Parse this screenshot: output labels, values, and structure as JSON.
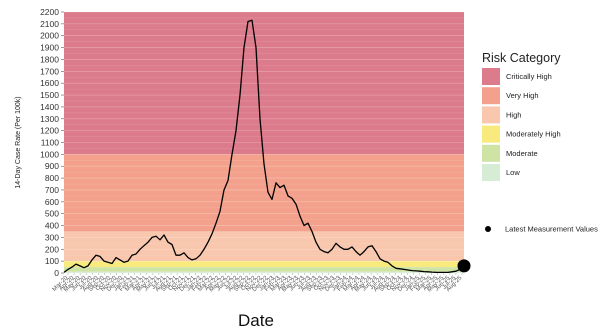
{
  "chart_data": {
    "type": "line",
    "title": "",
    "xlabel": "Date",
    "ylabel": "14-Day Case Rate (Per 100k)",
    "ylim": [
      0,
      2200
    ],
    "y_ticks": [
      0,
      100,
      200,
      300,
      400,
      500,
      600,
      700,
      800,
      900,
      1000,
      1100,
      1200,
      1300,
      1400,
      1500,
      1600,
      1700,
      1800,
      1900,
      2000,
      2100,
      2200
    ],
    "x_tick_labels": [
      "Mar-20",
      "Apr-20",
      "May-20",
      "Jun-20",
      "Jul-20",
      "Aug-20",
      "Sep-20",
      "Oct-20",
      "Nov-20",
      "Dec-20",
      "Jan-21",
      "Feb-21",
      "Mar-21",
      "Apr-21",
      "May-21",
      "Jun-21",
      "Jul-21",
      "Aug-21",
      "Sep-21",
      "Oct-21",
      "Nov-21",
      "Dec-21",
      "Jan-22",
      "Feb-22",
      "Mar-22",
      "Apr-22",
      "May-22",
      "Jun-22",
      "Jul-22",
      "Aug-22",
      "Sep-22",
      "Oct-22",
      "Nov-22",
      "Dec-22",
      "Jan-23",
      "Feb-23",
      "Mar-23",
      "Apr-23",
      "May-23",
      "Jun-23",
      "Jul-23",
      "Aug-23",
      "Sep-23",
      "Oct-23",
      "Nov-23",
      "Dec-23",
      "Jan-24",
      "Feb-24",
      "Mar-24",
      "Apr-24",
      "May-24",
      "Jun-24",
      "Jul-24",
      "Aug-24",
      "Sep-24",
      "Oct-24",
      "Nov-24",
      "Dec-24",
      "Jan-25",
      "Feb-25",
      "Mar-25",
      "Apr-25",
      "May-25",
      "Jun-25",
      "Jul-25",
      "Aug-25"
    ],
    "grid": true,
    "legend_position": "right",
    "risk_bands": [
      {
        "name": "Critically High",
        "from": 1000,
        "to": 2200,
        "color": "#dc7b8b"
      },
      {
        "name": "Very High",
        "from": 350,
        "to": 1000,
        "color": "#f3a18c"
      },
      {
        "name": "High",
        "from": 100,
        "to": 350,
        "color": "#f8c7ad"
      },
      {
        "name": "Moderately High",
        "from": 50,
        "to": 100,
        "color": "#f8ea7c"
      },
      {
        "name": "Moderate",
        "from": 10,
        "to": 50,
        "color": "#cfe3a5"
      },
      {
        "name": "Low",
        "from": 0,
        "to": 10,
        "color": "#d6ecd4"
      }
    ],
    "series": [
      {
        "x": [
          0,
          1,
          2,
          3,
          4,
          5,
          6,
          7,
          8,
          9,
          10,
          11,
          12,
          13,
          14,
          15,
          16,
          17,
          18,
          19,
          20,
          21,
          22,
          23,
          24,
          25,
          26,
          27,
          28,
          29,
          30,
          31,
          32,
          33,
          34,
          35,
          36,
          37,
          38,
          39,
          40,
          41,
          42,
          43,
          44,
          45,
          46,
          47,
          48,
          49,
          50,
          51,
          52,
          53,
          54,
          55,
          56,
          57,
          58,
          59,
          60,
          61,
          62,
          63,
          64,
          65,
          66,
          67,
          68,
          69,
          70,
          71,
          72,
          73,
          74,
          75,
          76,
          77,
          78,
          79,
          80,
          81,
          82,
          83,
          84,
          85,
          86,
          87,
          88,
          89,
          90,
          91,
          92,
          93,
          94,
          95,
          96,
          97,
          98,
          99,
          100
        ],
        "values": [
          5,
          30,
          50,
          75,
          60,
          45,
          60,
          110,
          150,
          140,
          100,
          90,
          80,
          130,
          110,
          90,
          100,
          150,
          160,
          200,
          230,
          260,
          300,
          310,
          280,
          320,
          260,
          240,
          150,
          150,
          170,
          130,
          110,
          120,
          150,
          200,
          260,
          330,
          420,
          520,
          700,
          780,
          1000,
          1200,
          1500,
          1900,
          2120,
          2130,
          1900,
          1300,
          920,
          680,
          620,
          760,
          720,
          740,
          650,
          630,
          580,
          480,
          400,
          420,
          350,
          260,
          200,
          180,
          170,
          200,
          250,
          220,
          200,
          200,
          220,
          180,
          150,
          180,
          220,
          230,
          180,
          120,
          100,
          90,
          60,
          40,
          35,
          30,
          25,
          20,
          18,
          15,
          12,
          10,
          8,
          6,
          5,
          5,
          5,
          10,
          15,
          30,
          60
        ],
        "color": "#000000"
      }
    ],
    "latest_value_marker": {
      "x": 100,
      "y": 60
    }
  },
  "legend": {
    "title": "Risk Category",
    "items": [
      {
        "label": "Critically High",
        "color": "#dc7b8b"
      },
      {
        "label": "Very High",
        "color": "#f3a18c"
      },
      {
        "label": "High",
        "color": "#f8c7ad"
      },
      {
        "label": "Moderately High",
        "color": "#f8ea7c"
      },
      {
        "label": "Moderate",
        "color": "#cfe3a5"
      },
      {
        "label": "Low",
        "color": "#d6ecd4"
      }
    ],
    "marker_label": "Latest Measurement Values"
  }
}
